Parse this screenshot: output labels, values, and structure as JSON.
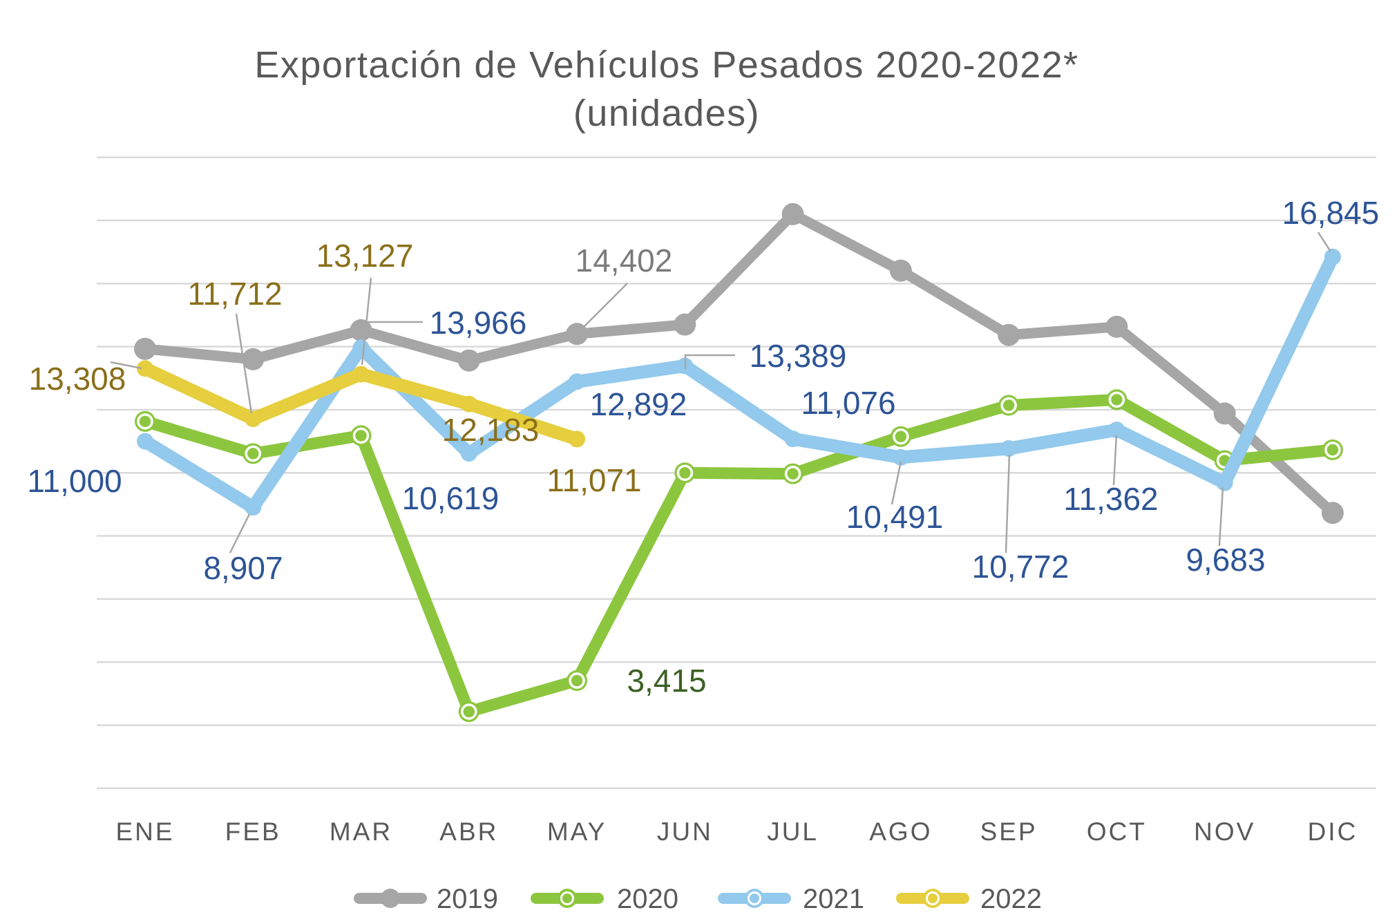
{
  "chart_data": {
    "type": "line",
    "title": "Exportación de Vehículos Pesados 2020-2022*",
    "subtitle": "(unidades)",
    "categories": [
      "ENE",
      "FEB",
      "MAR",
      "ABR",
      "MAY",
      "JUN",
      "JUL",
      "AGO",
      "SEP",
      "OCT",
      "NOV",
      "DIC"
    ],
    "y_axis": {
      "min": 0,
      "max": 20000,
      "grid_step": 2000,
      "tick_labels_visible": false,
      "grid": "on"
    },
    "legend_position": "bottom",
    "series": [
      {
        "name": "2019",
        "color": "#A6A6A6",
        "label_color": "#7B7B7B",
        "values": [
          13930,
          13600,
          14520,
          13560,
          14402,
          14700,
          18200,
          16410,
          14370,
          14630,
          11880,
          8730
        ],
        "data_labels": {
          "4": "14,402"
        }
      },
      {
        "name": "2020",
        "color": "#8CC63F",
        "label_color": "#3C6123",
        "values": [
          11630,
          10610,
          11180,
          2430,
          3415,
          10000,
          9970,
          11150,
          12140,
          12320,
          10390,
          10730
        ],
        "data_labels": {
          "4": "3,415"
        }
      },
      {
        "name": "2021",
        "color": "#92C9EC",
        "label_color": "#2D5496",
        "values": [
          11000,
          8907,
          13966,
          10619,
          12892,
          13389,
          11076,
          10491,
          10772,
          11362,
          9683,
          16845
        ],
        "data_labels": {
          "0": "11,000",
          "1": "8,907",
          "2": "13,966",
          "3": "10,619",
          "4": "12,892",
          "5": "13,389",
          "6": "11,076",
          "7": "10,491",
          "8": "10,772",
          "9": "11,362",
          "10": "9,683",
          "11": "16,845"
        }
      },
      {
        "name": "2022",
        "color": "#E6CE3E",
        "label_color": "#8A6F1A",
        "values": [
          13308,
          11712,
          13127,
          12183,
          11071,
          null,
          null,
          null,
          null,
          null,
          null,
          null
        ],
        "data_labels": {
          "0": "13,308",
          "1": "11,712",
          "2": "13,127",
          "3": "12,183",
          "4": "11,071"
        }
      }
    ],
    "legend": [
      {
        "label": "2019",
        "color": "#A6A6A6"
      },
      {
        "label": "2020",
        "color": "#8CC63F"
      },
      {
        "label": "2021",
        "color": "#92C9EC"
      },
      {
        "label": "2022",
        "color": "#E6CE3E"
      }
    ]
  }
}
